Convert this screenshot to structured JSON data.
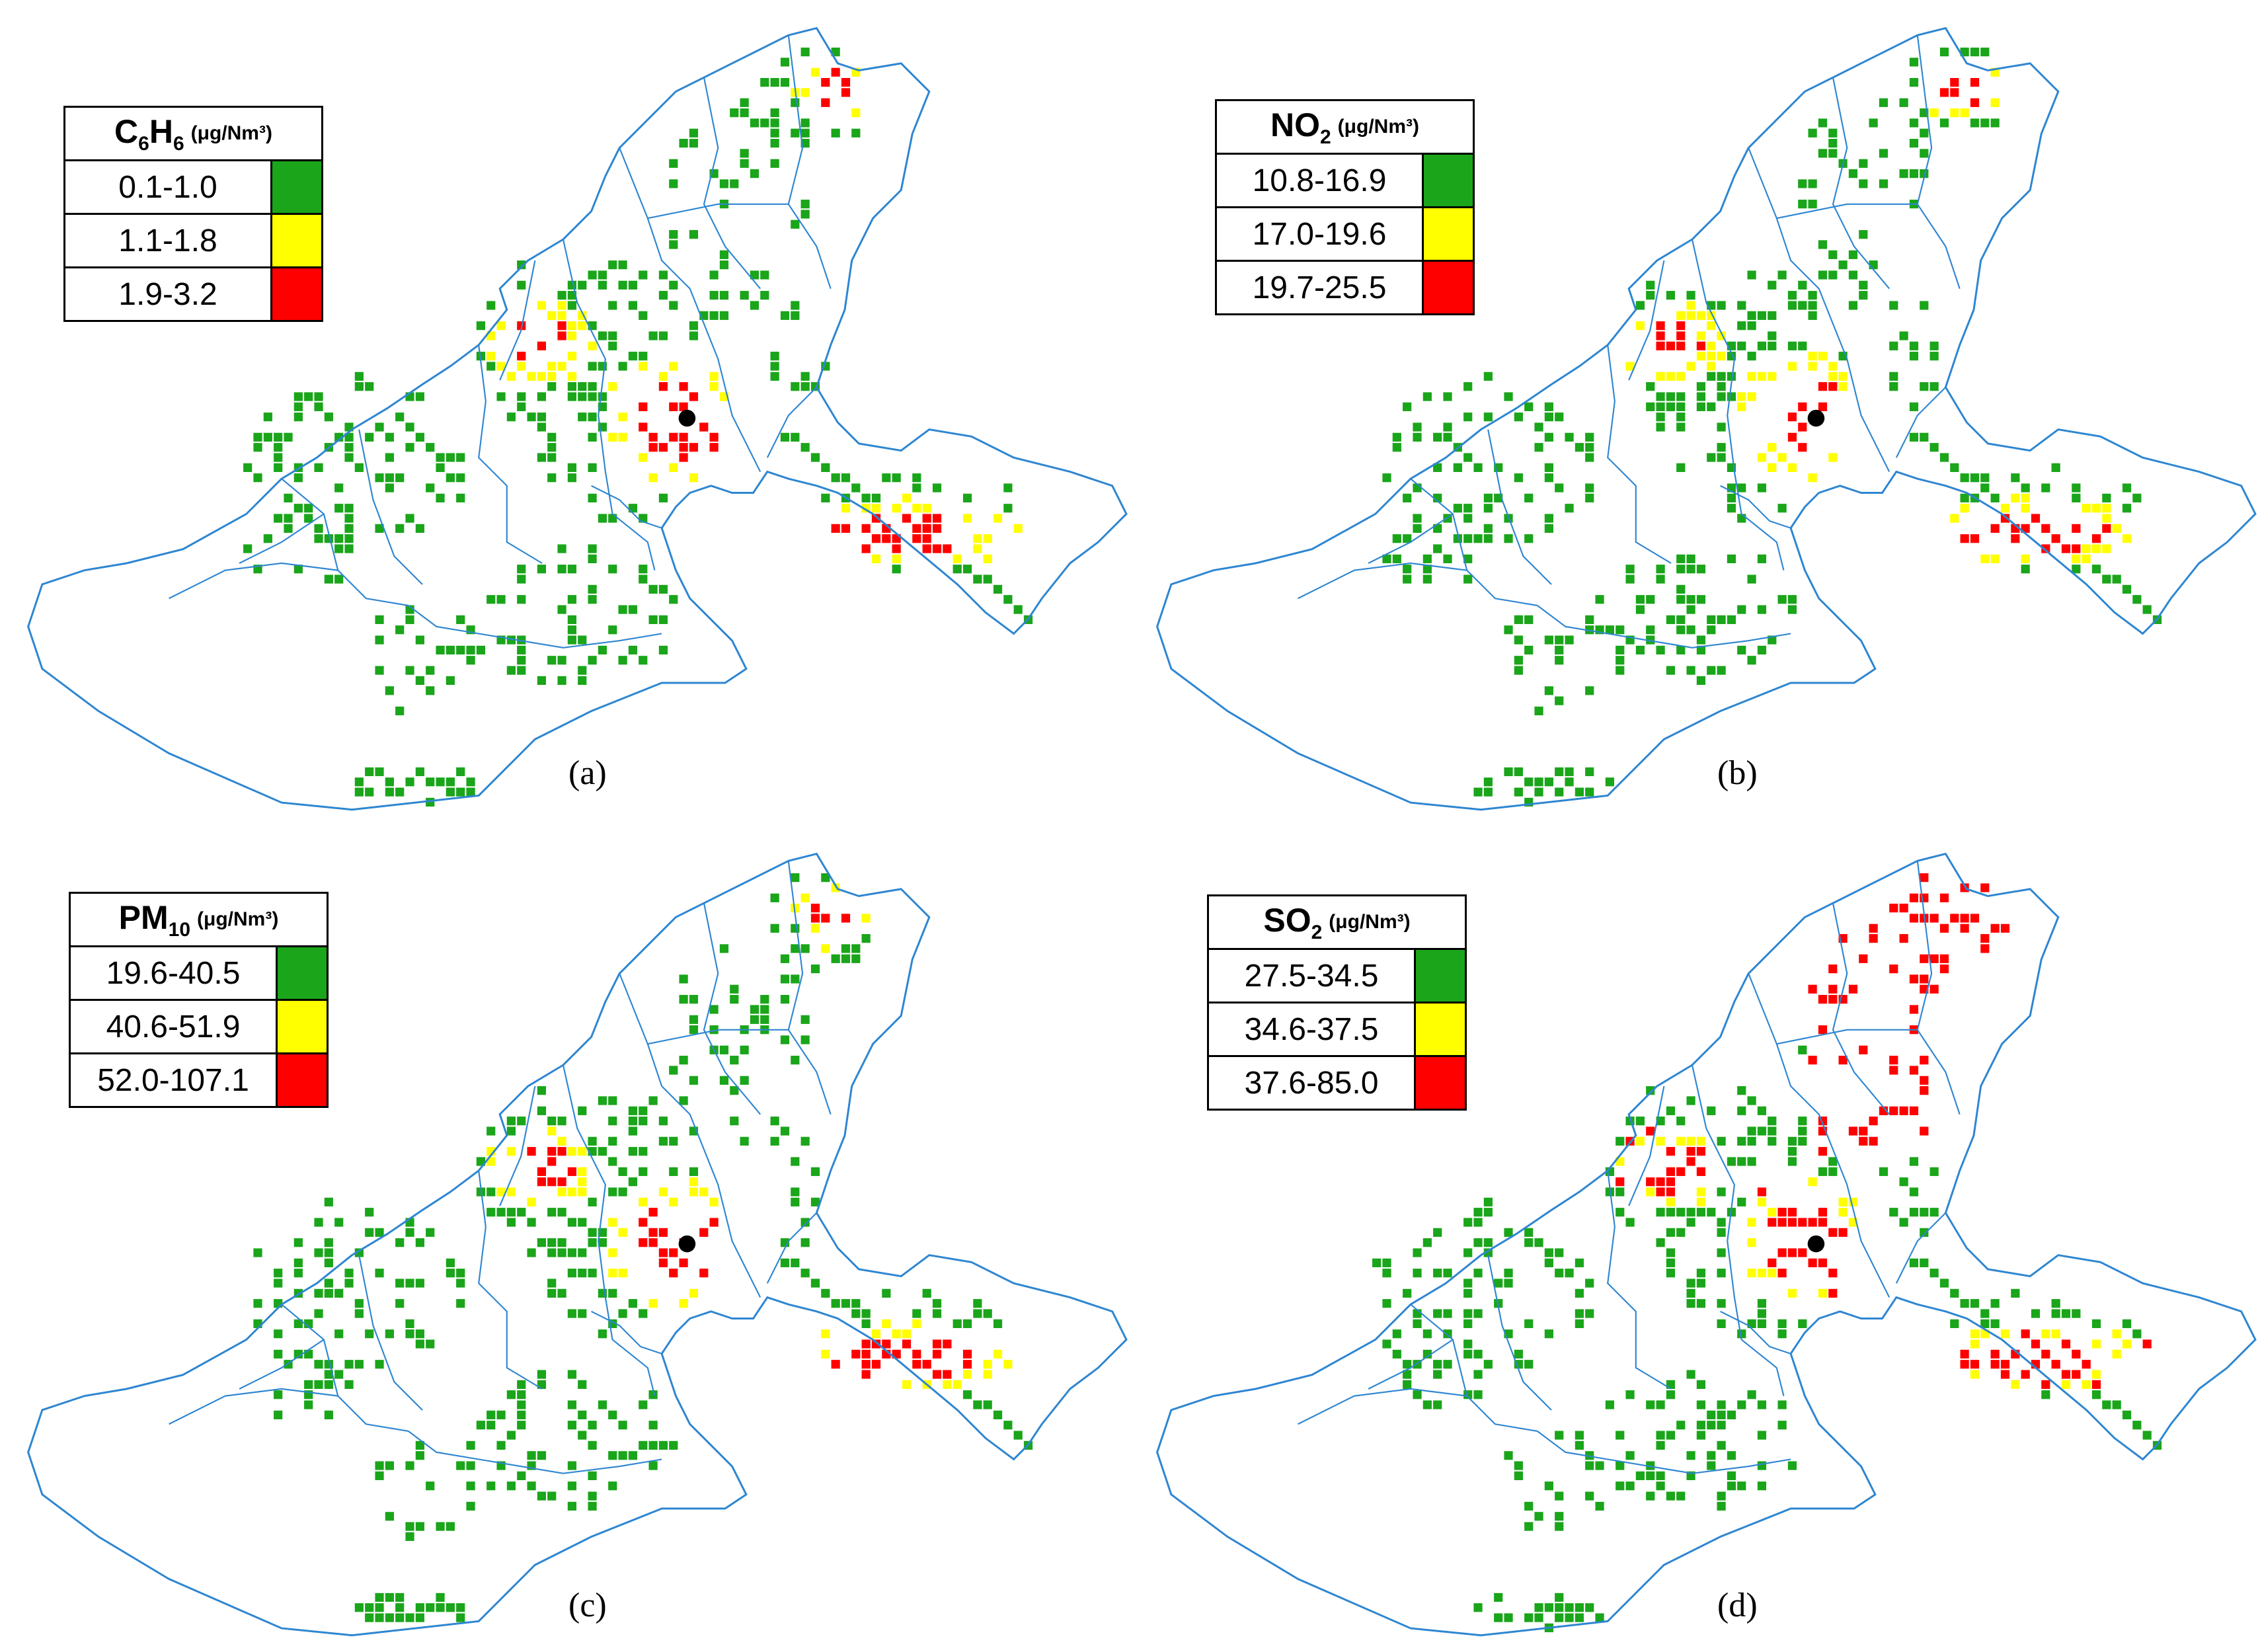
{
  "colors": {
    "low": "#1aa51a",
    "mid": "#ffff00",
    "high": "#ff0000",
    "boundary": "#2e86d1",
    "marker": "#000000"
  },
  "panels": [
    {
      "id": "a",
      "caption": "(a)",
      "pollutant_main": "C",
      "pollutant_sub": "6",
      "pollutant_main2": "H",
      "pollutant_sub2": "6",
      "unit": "(μg/Nm³)",
      "classes": [
        {
          "range": "0.1-1.0",
          "color": "low"
        },
        {
          "range": "1.1-1.8",
          "color": "mid"
        },
        {
          "range": "1.9-3.2",
          "color": "high"
        }
      ]
    },
    {
      "id": "b",
      "caption": "(b)",
      "pollutant_main": "NO",
      "pollutant_sub": "2",
      "pollutant_main2": "",
      "pollutant_sub2": "",
      "unit": "(μg/Nm³)",
      "classes": [
        {
          "range": "10.8-16.9",
          "color": "low"
        },
        {
          "range": "17.0-19.6",
          "color": "mid"
        },
        {
          "range": "19.7-25.5",
          "color": "high"
        }
      ]
    },
    {
      "id": "c",
      "caption": "(c)",
      "pollutant_main": "PM",
      "pollutant_sub": "10",
      "pollutant_main2": "",
      "pollutant_sub2": "",
      "unit": "(μg/Nm³)",
      "classes": [
        {
          "range": "19.6-40.5",
          "color": "low"
        },
        {
          "range": "40.6-51.9",
          "color": "mid"
        },
        {
          "range": "52.0-107.1",
          "color": "high"
        }
      ]
    },
    {
      "id": "d",
      "caption": "(d)",
      "pollutant_main": "SO",
      "pollutant_sub": "2",
      "pollutant_main2": "",
      "pollutant_sub2": "",
      "unit": "(μg/Nm³)",
      "classes": [
        {
          "range": "27.5-34.5",
          "color": "low"
        },
        {
          "range": "34.6-37.5",
          "color": "mid"
        },
        {
          "range": "37.6-85.0",
          "color": "high"
        }
      ]
    }
  ]
}
